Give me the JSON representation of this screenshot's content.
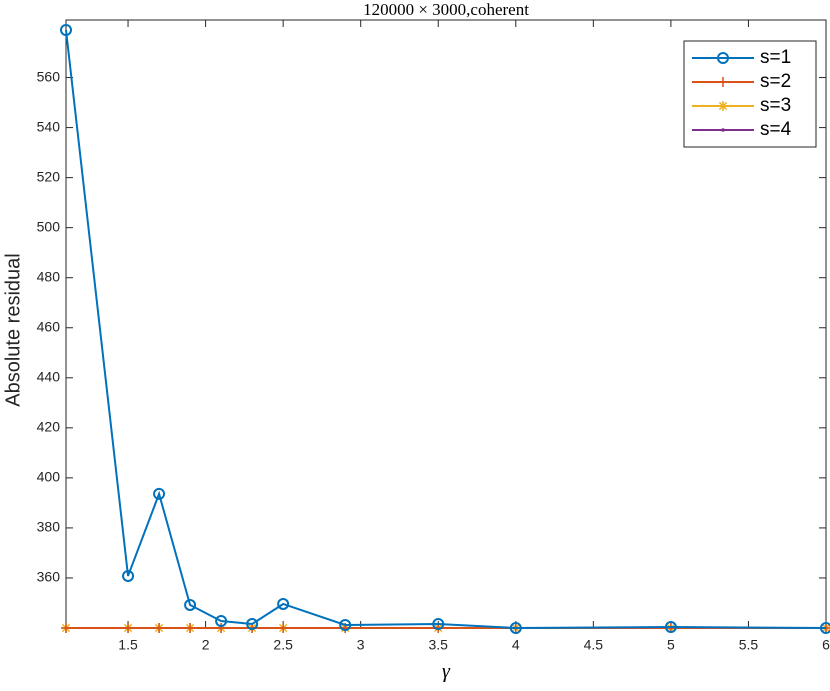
{
  "chart_data": {
    "type": "line",
    "title": "120000 × 3000,coherent",
    "x_label": "γ",
    "y_label": "Absolute residual",
    "x": [
      1.1,
      1.5,
      1.7,
      1.9,
      2.1,
      2.3,
      2.5,
      2.9,
      3.5,
      4,
      5,
      6
    ],
    "series": [
      {
        "name": "s=1",
        "color": "#0072BD",
        "marker": "circle",
        "values": [
          579,
          360.8,
          393.6,
          349.2,
          342.8,
          341.6,
          349.6,
          341.2,
          341.6,
          340,
          340.4,
          340
        ]
      },
      {
        "name": "s=2",
        "color": "#D95319",
        "marker": "plus",
        "values": [
          340,
          340,
          340,
          340,
          340,
          340,
          340,
          340,
          340,
          340,
          340,
          340
        ]
      },
      {
        "name": "s=3",
        "color": "#EDB120",
        "marker": "asterisk",
        "values": [
          340,
          340,
          340,
          340,
          340,
          340,
          340,
          340,
          340,
          340,
          340,
          340
        ]
      },
      {
        "name": "s=4",
        "color": "#7E2F8E",
        "marker": "dot",
        "values": [
          340,
          340,
          340,
          340,
          340,
          340,
          340,
          340,
          340,
          340,
          340,
          340
        ]
      }
    ],
    "xlim": [
      1.1,
      6
    ],
    "xticks": [
      1.5,
      2,
      2.5,
      3,
      3.5,
      4,
      4.5,
      5,
      5.5,
      6
    ],
    "ylim": [
      340,
      583
    ],
    "yticks": [
      360,
      380,
      400,
      420,
      440,
      460,
      480,
      500,
      520,
      540,
      560
    ],
    "grid": false,
    "legend": "top-right"
  }
}
